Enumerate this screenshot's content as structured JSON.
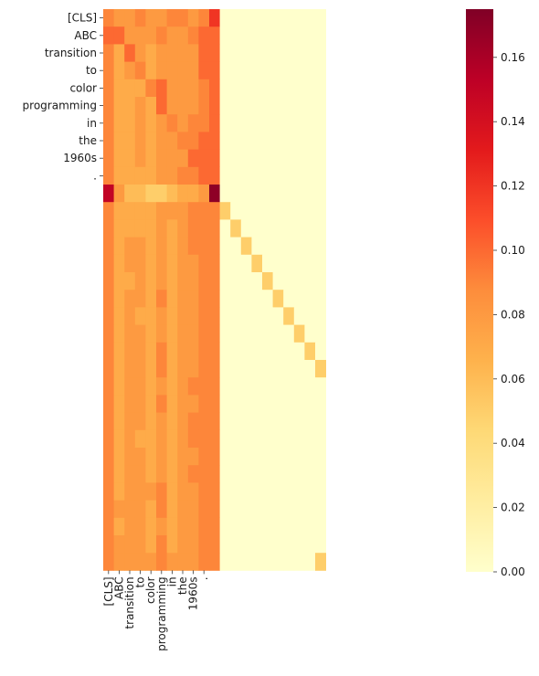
{
  "chart_data": {
    "type": "heatmap",
    "title": "",
    "xlabel": "",
    "ylabel": "",
    "tokens": [
      "[CLS]",
      "ABC",
      "transition",
      "to",
      "color",
      "programming",
      "in",
      "the",
      "1960s",
      "."
    ],
    "num_rows": 32,
    "num_cols": 21,
    "colormap": [
      "#ffffcc",
      "#ffeda0",
      "#fed976",
      "#feb24c",
      "#fd8d3c",
      "#fc4e2a",
      "#e31a1c",
      "#bd0026",
      "#800026"
    ],
    "colorbar": {
      "min": 0.0,
      "max": 0.175,
      "ticks": [
        0.0,
        0.02,
        0.04,
        0.06,
        0.08,
        0.1,
        0.12,
        0.14,
        0.16
      ],
      "tick_labels": [
        "0.00",
        "0.02",
        "0.04",
        "0.06",
        "0.08",
        "0.10",
        "0.12",
        "0.14",
        "0.16"
      ]
    },
    "values": [
      [
        0.09,
        0.08,
        0.08,
        0.09,
        0.08,
        0.08,
        0.09,
        0.09,
        0.08,
        0.09,
        0.12,
        0,
        0,
        0,
        0,
        0,
        0,
        0,
        0,
        0,
        0
      ],
      [
        0.1,
        0.1,
        0.08,
        0.08,
        0.08,
        0.09,
        0.08,
        0.08,
        0.09,
        0.1,
        0.1,
        0,
        0,
        0,
        0,
        0,
        0,
        0,
        0,
        0,
        0
      ],
      [
        0.09,
        0.07,
        0.1,
        0.08,
        0.07,
        0.08,
        0.08,
        0.08,
        0.08,
        0.1,
        0.1,
        0,
        0,
        0,
        0,
        0,
        0,
        0,
        0,
        0,
        0
      ],
      [
        0.09,
        0.07,
        0.08,
        0.09,
        0.07,
        0.08,
        0.08,
        0.08,
        0.08,
        0.1,
        0.1,
        0,
        0,
        0,
        0,
        0,
        0,
        0,
        0,
        0,
        0
      ],
      [
        0.09,
        0.07,
        0.07,
        0.07,
        0.09,
        0.1,
        0.08,
        0.08,
        0.08,
        0.09,
        0.1,
        0,
        0,
        0,
        0,
        0,
        0,
        0,
        0,
        0,
        0
      ],
      [
        0.09,
        0.07,
        0.07,
        0.08,
        0.07,
        0.1,
        0.08,
        0.08,
        0.08,
        0.09,
        0.1,
        0,
        0,
        0,
        0,
        0,
        0,
        0,
        0,
        0,
        0
      ],
      [
        0.09,
        0.07,
        0.07,
        0.08,
        0.07,
        0.08,
        0.09,
        0.08,
        0.09,
        0.09,
        0.1,
        0,
        0,
        0,
        0,
        0,
        0,
        0,
        0,
        0,
        0
      ],
      [
        0.09,
        0.07,
        0.07,
        0.08,
        0.07,
        0.08,
        0.08,
        0.09,
        0.09,
        0.1,
        0.1,
        0,
        0,
        0,
        0,
        0,
        0,
        0,
        0,
        0,
        0
      ],
      [
        0.09,
        0.07,
        0.07,
        0.08,
        0.07,
        0.08,
        0.08,
        0.08,
        0.1,
        0.1,
        0.1,
        0,
        0,
        0,
        0,
        0,
        0,
        0,
        0,
        0,
        0
      ],
      [
        0.09,
        0.07,
        0.07,
        0.07,
        0.07,
        0.08,
        0.08,
        0.09,
        0.09,
        0.1,
        0.1,
        0,
        0,
        0,
        0,
        0,
        0,
        0,
        0,
        0,
        0
      ],
      [
        0.15,
        0.08,
        0.06,
        0.06,
        0.05,
        0.05,
        0.06,
        0.07,
        0.07,
        0.08,
        0.17,
        0,
        0,
        0,
        0,
        0,
        0,
        0,
        0,
        0,
        0
      ],
      [
        0.09,
        0.07,
        0.07,
        0.07,
        0.07,
        0.08,
        0.08,
        0.08,
        0.09,
        0.09,
        0.09,
        0.05,
        0,
        0,
        0,
        0,
        0,
        0,
        0,
        0,
        0
      ],
      [
        0.09,
        0.07,
        0.07,
        0.07,
        0.07,
        0.08,
        0.07,
        0.08,
        0.09,
        0.09,
        0.09,
        0,
        0.05,
        0,
        0,
        0,
        0,
        0,
        0,
        0,
        0
      ],
      [
        0.09,
        0.07,
        0.08,
        0.08,
        0.07,
        0.08,
        0.07,
        0.08,
        0.09,
        0.09,
        0.09,
        0,
        0,
        0.05,
        0,
        0,
        0,
        0,
        0,
        0,
        0
      ],
      [
        0.09,
        0.07,
        0.08,
        0.08,
        0.07,
        0.08,
        0.07,
        0.08,
        0.08,
        0.09,
        0.09,
        0,
        0,
        0,
        0.05,
        0,
        0,
        0,
        0,
        0,
        0
      ],
      [
        0.09,
        0.07,
        0.07,
        0.08,
        0.07,
        0.08,
        0.07,
        0.08,
        0.08,
        0.09,
        0.09,
        0,
        0,
        0,
        0,
        0.05,
        0,
        0,
        0,
        0,
        0
      ],
      [
        0.09,
        0.07,
        0.08,
        0.08,
        0.07,
        0.09,
        0.07,
        0.08,
        0.08,
        0.09,
        0.09,
        0,
        0,
        0,
        0,
        0,
        0.05,
        0,
        0,
        0,
        0
      ],
      [
        0.09,
        0.07,
        0.08,
        0.07,
        0.07,
        0.08,
        0.07,
        0.08,
        0.08,
        0.09,
        0.09,
        0,
        0,
        0,
        0,
        0,
        0,
        0.05,
        0,
        0,
        0
      ],
      [
        0.09,
        0.07,
        0.08,
        0.08,
        0.07,
        0.08,
        0.07,
        0.08,
        0.08,
        0.09,
        0.09,
        0,
        0,
        0,
        0,
        0,
        0,
        0,
        0.05,
        0,
        0
      ],
      [
        0.09,
        0.07,
        0.08,
        0.08,
        0.07,
        0.09,
        0.07,
        0.08,
        0.08,
        0.09,
        0.09,
        0,
        0,
        0,
        0,
        0,
        0,
        0,
        0,
        0.05,
        0
      ],
      [
        0.09,
        0.07,
        0.08,
        0.08,
        0.07,
        0.09,
        0.07,
        0.08,
        0.08,
        0.09,
        0.09,
        0,
        0,
        0,
        0,
        0,
        0,
        0,
        0,
        0,
        0.05
      ],
      [
        0.09,
        0.07,
        0.08,
        0.08,
        0.07,
        0.08,
        0.07,
        0.08,
        0.09,
        0.09,
        0.09,
        0,
        0,
        0,
        0,
        0,
        0,
        0,
        0,
        0,
        0
      ],
      [
        0.09,
        0.07,
        0.08,
        0.08,
        0.07,
        0.09,
        0.07,
        0.08,
        0.08,
        0.09,
        0.09,
        0,
        0,
        0,
        0,
        0,
        0,
        0,
        0,
        0,
        0
      ],
      [
        0.09,
        0.07,
        0.08,
        0.08,
        0.07,
        0.08,
        0.07,
        0.08,
        0.09,
        0.09,
        0.09,
        0,
        0,
        0,
        0,
        0,
        0,
        0,
        0,
        0,
        0
      ],
      [
        0.09,
        0.07,
        0.08,
        0.07,
        0.07,
        0.08,
        0.07,
        0.08,
        0.09,
        0.09,
        0.09,
        0,
        0,
        0,
        0,
        0,
        0,
        0,
        0,
        0,
        0
      ],
      [
        0.09,
        0.07,
        0.08,
        0.08,
        0.07,
        0.08,
        0.07,
        0.08,
        0.08,
        0.09,
        0.09,
        0,
        0,
        0,
        0,
        0,
        0,
        0,
        0,
        0,
        0
      ],
      [
        0.09,
        0.07,
        0.08,
        0.08,
        0.07,
        0.08,
        0.07,
        0.08,
        0.09,
        0.09,
        0.09,
        0,
        0,
        0,
        0,
        0,
        0,
        0,
        0,
        0,
        0
      ],
      [
        0.09,
        0.07,
        0.08,
        0.08,
        0.08,
        0.09,
        0.07,
        0.08,
        0.08,
        0.09,
        0.09,
        0,
        0,
        0,
        0,
        0,
        0,
        0,
        0,
        0,
        0
      ],
      [
        0.09,
        0.08,
        0.08,
        0.08,
        0.07,
        0.09,
        0.07,
        0.08,
        0.08,
        0.09,
        0.09,
        0,
        0,
        0,
        0,
        0,
        0,
        0,
        0,
        0,
        0
      ],
      [
        0.09,
        0.07,
        0.08,
        0.08,
        0.07,
        0.08,
        0.07,
        0.08,
        0.08,
        0.09,
        0.09,
        0,
        0,
        0,
        0,
        0,
        0,
        0,
        0,
        0,
        0
      ],
      [
        0.09,
        0.08,
        0.08,
        0.08,
        0.07,
        0.09,
        0.07,
        0.08,
        0.08,
        0.09,
        0.09,
        0,
        0,
        0,
        0,
        0,
        0,
        0,
        0,
        0,
        0
      ],
      [
        0.09,
        0.08,
        0.08,
        0.08,
        0.08,
        0.09,
        0.08,
        0.08,
        0.08,
        0.09,
        0.09,
        0,
        0,
        0,
        0,
        0,
        0,
        0,
        0,
        0,
        0.05
      ]
    ]
  }
}
